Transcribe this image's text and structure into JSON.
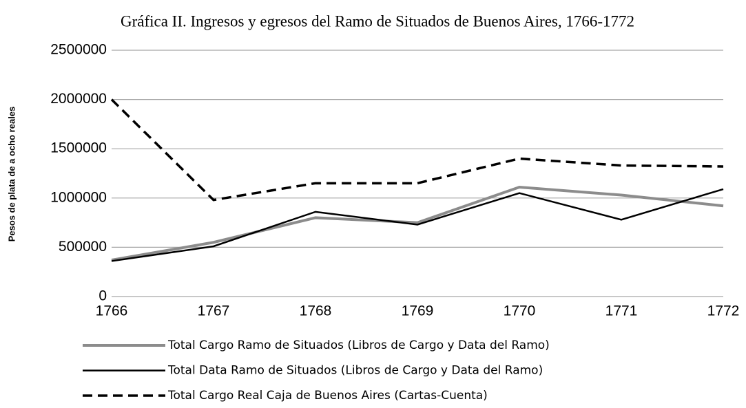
{
  "chart_data": {
    "type": "line",
    "title": "Gráfica II. Ingresos y egresos del Ramo de Situados de Buenos Aires, 1766-1772",
    "y_label": "Pesos de plata de a ocho reales",
    "categories": [
      "1766",
      "1767",
      "1768",
      "1769",
      "1770",
      "1771",
      "1772"
    ],
    "series": [
      {
        "name": "Total Cargo Ramo de Situados (Libros de Cargo y Data del Ramo)",
        "color": "#8c8c8c",
        "linestyle": "solid",
        "linewidth": 4,
        "values": [
          370000,
          550000,
          800000,
          750000,
          1110000,
          1030000,
          920000
        ]
      },
      {
        "name": "Total Data Ramo de Situados (Libros de Cargo y Data del Ramo)",
        "color": "#000000",
        "linestyle": "solid",
        "linewidth": 2.5,
        "values": [
          360000,
          510000,
          860000,
          730000,
          1050000,
          780000,
          1090000
        ]
      },
      {
        "name": "Total Cargo Real Caja de Buenos Aires (Cartas-Cuenta)",
        "color": "#000000",
        "linestyle": "dashed",
        "linewidth": 3.5,
        "values": [
          2000000,
          980000,
          1150000,
          1150000,
          1400000,
          1330000,
          1320000
        ]
      }
    ],
    "ylim": [
      0,
      2500000
    ],
    "yticks": [
      0,
      500000,
      1000000,
      1500000,
      2000000,
      2500000
    ],
    "grid": true
  }
}
